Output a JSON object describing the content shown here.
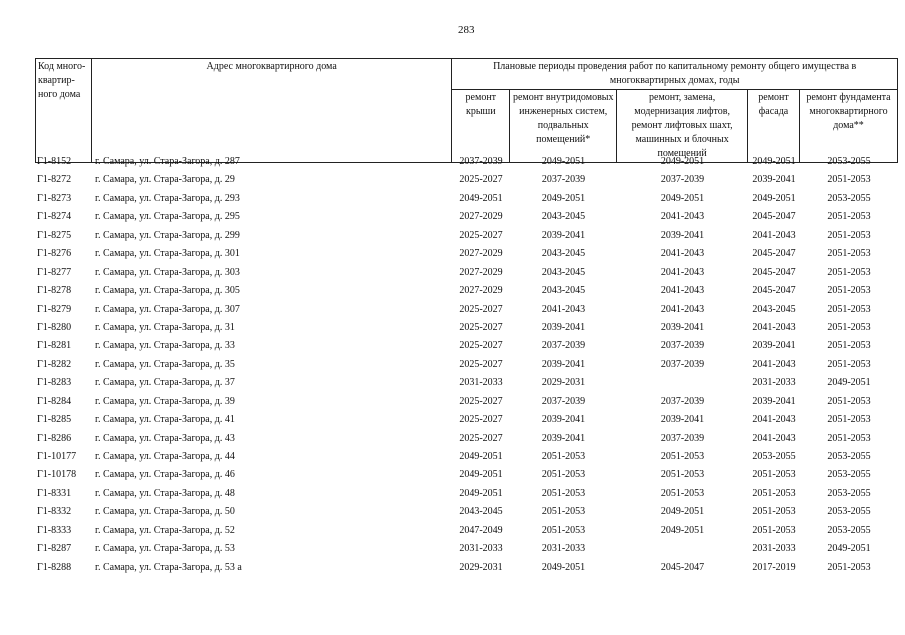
{
  "page_number": "283",
  "header": {
    "code": "Код много-квартир-ного дома",
    "address": "Адрес многоквартирного дома",
    "periods": "Плановые периоды проведения работ по капитальному ремонту общего имущества в многоквартирных домах, годы",
    "roof": "ремонт крыши",
    "internal": "ремонт внутридомовых инженерных систем, подвальных помещений*",
    "lifts": "ремонт, замена, модернизация лифтов, ремонт лифтовых шахт, машинных и блочных помещений",
    "facade": "ремонт фасада",
    "foundation": "ремонт фундамента многоквартирного дома**"
  },
  "rows": [
    [
      "Г1-8152",
      "г. Самара, ул. Стара-Загора, д. 287",
      "2037-2039",
      "2049-2051",
      "2049-2051",
      "2049-2051",
      "2053-2055"
    ],
    [
      "Г1-8272",
      "г. Самара, ул. Стара-Загора, д. 29",
      "2025-2027",
      "2037-2039",
      "2037-2039",
      "2039-2041",
      "2051-2053"
    ],
    [
      "Г1-8273",
      "г. Самара, ул. Стара-Загора, д. 293",
      "2049-2051",
      "2049-2051",
      "2049-2051",
      "2049-2051",
      "2053-2055"
    ],
    [
      "Г1-8274",
      "г. Самара, ул. Стара-Загора, д. 295",
      "2027-2029",
      "2043-2045",
      "2041-2043",
      "2045-2047",
      "2051-2053"
    ],
    [
      "Г1-8275",
      "г. Самара, ул. Стара-Загора, д. 299",
      "2025-2027",
      "2039-2041",
      "2039-2041",
      "2041-2043",
      "2051-2053"
    ],
    [
      "Г1-8276",
      "г. Самара, ул. Стара-Загора, д. 301",
      "2027-2029",
      "2043-2045",
      "2041-2043",
      "2045-2047",
      "2051-2053"
    ],
    [
      "Г1-8277",
      "г. Самара, ул. Стара-Загора, д. 303",
      "2027-2029",
      "2043-2045",
      "2041-2043",
      "2045-2047",
      "2051-2053"
    ],
    [
      "Г1-8278",
      "г. Самара, ул. Стара-Загора, д. 305",
      "2027-2029",
      "2043-2045",
      "2041-2043",
      "2045-2047",
      "2051-2053"
    ],
    [
      "Г1-8279",
      "г. Самара, ул. Стара-Загора, д. 307",
      "2025-2027",
      "2041-2043",
      "2041-2043",
      "2043-2045",
      "2051-2053"
    ],
    [
      "Г1-8280",
      "г. Самара, ул. Стара-Загора, д. 31",
      "2025-2027",
      "2039-2041",
      "2039-2041",
      "2041-2043",
      "2051-2053"
    ],
    [
      "Г1-8281",
      "г. Самара, ул. Стара-Загора, д. 33",
      "2025-2027",
      "2037-2039",
      "2037-2039",
      "2039-2041",
      "2051-2053"
    ],
    [
      "Г1-8282",
      "г. Самара, ул. Стара-Загора, д. 35",
      "2025-2027",
      "2039-2041",
      "2037-2039",
      "2041-2043",
      "2051-2053"
    ],
    [
      "Г1-8283",
      "г. Самара, ул. Стара-Загора, д. 37",
      "2031-2033",
      "2029-2031",
      "",
      "2031-2033",
      "2049-2051"
    ],
    [
      "Г1-8284",
      "г. Самара, ул. Стара-Загора, д. 39",
      "2025-2027",
      "2037-2039",
      "2037-2039",
      "2039-2041",
      "2051-2053"
    ],
    [
      "Г1-8285",
      "г. Самара, ул. Стара-Загора, д. 41",
      "2025-2027",
      "2039-2041",
      "2039-2041",
      "2041-2043",
      "2051-2053"
    ],
    [
      "Г1-8286",
      "г. Самара, ул. Стара-Загора, д. 43",
      "2025-2027",
      "2039-2041",
      "2037-2039",
      "2041-2043",
      "2051-2053"
    ],
    [
      "Г1-10177",
      "г. Самара, ул. Стара-Загора, д. 44",
      "2049-2051",
      "2051-2053",
      "2051-2053",
      "2053-2055",
      "2053-2055"
    ],
    [
      "Г1-10178",
      "г. Самара, ул. Стара-Загора, д. 46",
      "2049-2051",
      "2051-2053",
      "2051-2053",
      "2051-2053",
      "2053-2055"
    ],
    [
      "Г1-8331",
      "г. Самара, ул. Стара-Загора, д. 48",
      "2049-2051",
      "2051-2053",
      "2051-2053",
      "2051-2053",
      "2053-2055"
    ],
    [
      "Г1-8332",
      "г. Самара, ул. Стара-Загора, д. 50",
      "2043-2045",
      "2051-2053",
      "2049-2051",
      "2051-2053",
      "2053-2055"
    ],
    [
      "Г1-8333",
      "г. Самара, ул. Стара-Загора, д. 52",
      "2047-2049",
      "2051-2053",
      "2049-2051",
      "2051-2053",
      "2053-2055"
    ],
    [
      "Г1-8287",
      "г. Самара, ул. Стара-Загора, д. 53",
      "2031-2033",
      "2031-2033",
      "",
      "2031-2033",
      "2049-2051"
    ],
    [
      "Г1-8288",
      "г. Самара, ул. Стара-Загора, д. 53 а",
      "2029-2031",
      "2049-2051",
      "2045-2047",
      "2017-2019",
      "2051-2053"
    ]
  ]
}
